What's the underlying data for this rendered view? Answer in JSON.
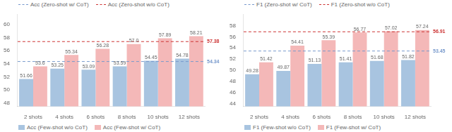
{
  "chart_data": [
    {
      "type": "bar",
      "categories": [
        "2 shots",
        "4 shots",
        "6 shots",
        "8 shots",
        "10 shots",
        "12 shots"
      ],
      "series": [
        {
          "name": "Acc (Few-shot w/o CoT)",
          "color": "#a8c4e0",
          "values": [
            51.66,
            53.25,
            53.09,
            53.59,
            54.45,
            54.78
          ]
        },
        {
          "name": "Acc (Few-shot w/ CoT)",
          "color": "#f4b8b8",
          "values": [
            53.6,
            55.34,
            56.28,
            57.0,
            57.89,
            58.21
          ],
          "value_labels": [
            "53.6",
            "55.34",
            "56.28",
            "57.0",
            "57.89",
            "58.21"
          ]
        }
      ],
      "hlines": [
        {
          "name": "Acc (Zero-shot w/ CoT)",
          "value": 54.34,
          "color": "#7799cc",
          "line_style": "dashed"
        },
        {
          "name": "Acc (Zero-shot w/o CoT)",
          "value": 57.38,
          "color": "#cc3333",
          "line_style": "dashed"
        }
      ],
      "ylim": [
        47.5,
        61.5
      ],
      "yticks": [
        48,
        50,
        52,
        54,
        56,
        58,
        60
      ],
      "grid": false,
      "data_labels": true
    },
    {
      "type": "bar",
      "categories": [
        "2 shots",
        "4 shots",
        "6 shots",
        "8 shots",
        "10 shots",
        "12 shots"
      ],
      "series": [
        {
          "name": "F1 (Few-shot w/o CoT)",
          "color": "#a8c4e0",
          "values": [
            49.28,
            49.87,
            51.13,
            51.41,
            51.68,
            51.82
          ]
        },
        {
          "name": "F1 (Few-shot w/ CoT)",
          "color": "#f4b8b8",
          "values": [
            51.42,
            54.41,
            55.39,
            56.77,
            57.02,
            57.24
          ]
        }
      ],
      "hlines": [
        {
          "name": "F1 (Zero-shot w/ CoT)",
          "value": 53.45,
          "color": "#7799cc",
          "line_style": "dashed"
        },
        {
          "name": "F1 (Zero-shot w/o CoT)",
          "value": 56.91,
          "color": "#cc3333",
          "line_style": "dashed"
        }
      ],
      "ylim": [
        43.5,
        60.0
      ],
      "yticks": [
        44,
        46,
        48,
        50,
        52,
        54,
        56,
        58
      ],
      "grid": false,
      "data_labels": true
    }
  ]
}
